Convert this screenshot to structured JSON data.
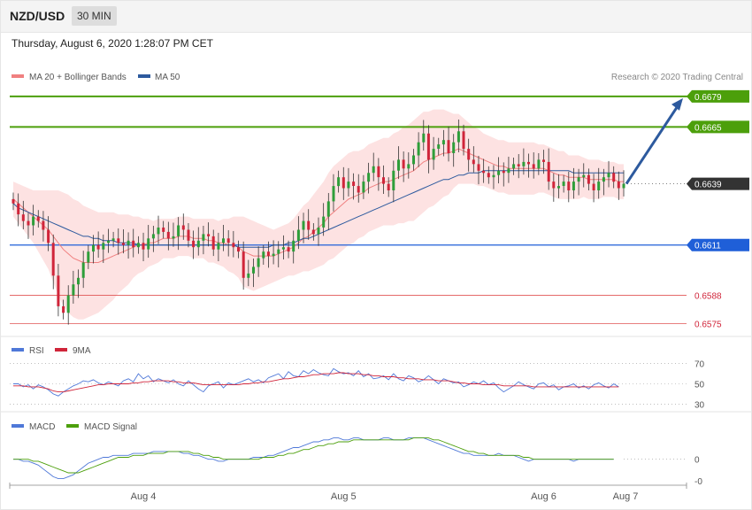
{
  "header": {
    "pair": "NZD/USD",
    "timeframe": "30 MIN"
  },
  "date_text": "Thursday, August 6, 2020 1:28:07 PM CET",
  "legend": {
    "ma20": "MA 20 + Bollinger Bands",
    "ma50": "MA 50",
    "credit": "Research © 2020 Trading Central",
    "rsi": "RSI",
    "rsi_ma": "9MA",
    "macd": "MACD",
    "macd_signal": "MACD Signal"
  },
  "colors": {
    "ma20": "#f08080",
    "ma50": "#2d5a9e",
    "band_fill": "#fde2e2",
    "bull": "#2e9e3a",
    "bear": "#d0253a",
    "resistance": "#4c9f0b",
    "support": "#1f5fd8",
    "target": "#e05555",
    "current": "#333333",
    "arrow": "#2d5a9e",
    "rsi": "#4f78d8",
    "macd": "#4f78d8",
    "signal": "#4c9f0b"
  },
  "chart_data": [
    {
      "type": "candlestick",
      "x_labels": [
        "Aug 4",
        "Aug 5",
        "Aug 6",
        "Aug 7"
      ],
      "ylim": [
        0.657,
        0.6685
      ],
      "levels": [
        {
          "value": 0.6679,
          "label": "0.6679",
          "kind": "resistance"
        },
        {
          "value": 0.6665,
          "label": "0.6665",
          "kind": "resistance"
        },
        {
          "value": 0.6639,
          "label": "0.6639",
          "kind": "current"
        },
        {
          "value": 0.6611,
          "label": "0.6611",
          "kind": "support"
        },
        {
          "value": 0.6588,
          "label": "0.6588",
          "kind": "target"
        },
        {
          "value": 0.6575,
          "label": "0.6575",
          "kind": "target"
        }
      ],
      "close": [
        0.663,
        0.6625,
        0.6622,
        0.662,
        0.6624,
        0.6622,
        0.6618,
        0.6612,
        0.6597,
        0.6583,
        0.658,
        0.6588,
        0.6593,
        0.6596,
        0.6603,
        0.6608,
        0.6611,
        0.6609,
        0.6612,
        0.6613,
        0.6614,
        0.6612,
        0.6611,
        0.6613,
        0.661,
        0.6612,
        0.6609,
        0.6614,
        0.6616,
        0.6619,
        0.6617,
        0.6614,
        0.6615,
        0.662,
        0.6618,
        0.6613,
        0.661,
        0.6613,
        0.6616,
        0.6615,
        0.6609,
        0.6612,
        0.6614,
        0.6612,
        0.661,
        0.6608,
        0.6596,
        0.6598,
        0.6601,
        0.6605,
        0.6608,
        0.6606,
        0.6607,
        0.6609,
        0.661,
        0.6608,
        0.6613,
        0.6618,
        0.6622,
        0.6618,
        0.6616,
        0.6619,
        0.6624,
        0.6631,
        0.6638,
        0.6642,
        0.6637,
        0.664,
        0.6638,
        0.6635,
        0.664,
        0.6644,
        0.6647,
        0.6642,
        0.6639,
        0.6636,
        0.6645,
        0.665,
        0.6646,
        0.6648,
        0.6652,
        0.6658,
        0.6662,
        0.665,
        0.6655,
        0.6657,
        0.6659,
        0.6653,
        0.6658,
        0.6663,
        0.6655,
        0.665,
        0.6648,
        0.6645,
        0.6644,
        0.6642,
        0.6643,
        0.6645,
        0.6644,
        0.6646,
        0.6648,
        0.6647,
        0.6649,
        0.6648,
        0.6646,
        0.665,
        0.6649,
        0.664,
        0.6637,
        0.6638,
        0.664,
        0.6636,
        0.664,
        0.6642,
        0.6643,
        0.6639,
        0.6636,
        0.664,
        0.6642,
        0.6644,
        0.664,
        0.6637,
        0.6639
      ],
      "ma20": [
        0.6632,
        0.663,
        0.6628,
        0.6626,
        0.6624,
        0.6622,
        0.662,
        0.6618,
        0.6615,
        0.6612,
        0.6609,
        0.6607,
        0.6605,
        0.6604,
        0.6603,
        0.6603,
        0.6603,
        0.6603,
        0.6604,
        0.6605,
        0.6606,
        0.6607,
        0.6608,
        0.6609,
        0.661,
        0.6611,
        0.6611,
        0.6612,
        0.6612,
        0.6613,
        0.6614,
        0.6614,
        0.6614,
        0.6615,
        0.6615,
        0.6615,
        0.6614,
        0.6614,
        0.6614,
        0.6613,
        0.6613,
        0.6612,
        0.6612,
        0.6611,
        0.6611,
        0.661,
        0.6608,
        0.6607,
        0.6606,
        0.6606,
        0.6606,
        0.6606,
        0.6606,
        0.6607,
        0.6608,
        0.6609,
        0.661,
        0.6612,
        0.6614,
        0.6615,
        0.6617,
        0.6619,
        0.6621,
        0.6624,
        0.6626,
        0.6628,
        0.663,
        0.6632,
        0.6633,
        0.6634,
        0.6635,
        0.6637,
        0.6638,
        0.6639,
        0.664,
        0.664,
        0.6641,
        0.6642,
        0.6643,
        0.6644,
        0.6645,
        0.6647,
        0.6649,
        0.665,
        0.6651,
        0.6652,
        0.6653,
        0.6653,
        0.6654,
        0.6655,
        0.6654,
        0.6653,
        0.6652,
        0.6651,
        0.665,
        0.6649,
        0.6648,
        0.6647,
        0.6647,
        0.6646,
        0.6646,
        0.6646,
        0.6646,
        0.6646,
        0.6646,
        0.6646,
        0.6646,
        0.6645,
        0.6644,
        0.6643,
        0.6643,
        0.6642,
        0.6642,
        0.6642,
        0.6642,
        0.6641,
        0.6641,
        0.6641,
        0.6641,
        0.6641,
        0.6641,
        0.664,
        0.664
      ],
      "ma50": [
        0.663,
        0.6628,
        0.6627,
        0.6626,
        0.6625,
        0.6624,
        0.6623,
        0.6622,
        0.6621,
        0.662,
        0.6619,
        0.6618,
        0.6617,
        0.6616,
        0.6615,
        0.6615,
        0.6614,
        0.6614,
        0.6613,
        0.6613,
        0.6613,
        0.6612,
        0.6612,
        0.6612,
        0.6612,
        0.6611,
        0.6611,
        0.6611,
        0.6611,
        0.6611,
        0.6611,
        0.6611,
        0.6611,
        0.6611,
        0.6611,
        0.6611,
        0.6611,
        0.6611,
        0.6611,
        0.6611,
        0.6611,
        0.6611,
        0.6611,
        0.6611,
        0.6611,
        0.661,
        0.661,
        0.661,
        0.661,
        0.661,
        0.661,
        0.661,
        0.6611,
        0.6611,
        0.6611,
        0.6612,
        0.6612,
        0.6613,
        0.6614,
        0.6614,
        0.6615,
        0.6616,
        0.6617,
        0.6618,
        0.6619,
        0.662,
        0.6621,
        0.6622,
        0.6623,
        0.6624,
        0.6625,
        0.6626,
        0.6627,
        0.6628,
        0.6629,
        0.663,
        0.6631,
        0.6632,
        0.6633,
        0.6634,
        0.6635,
        0.6636,
        0.6637,
        0.6638,
        0.6639,
        0.664,
        0.6641,
        0.6641,
        0.6642,
        0.6643,
        0.6643,
        0.6644,
        0.6644,
        0.6644,
        0.6645,
        0.6645,
        0.6645,
        0.6645,
        0.6645,
        0.6645,
        0.6645,
        0.6645,
        0.6645,
        0.6645,
        0.6645,
        0.6645,
        0.6645,
        0.6645,
        0.6645,
        0.6645,
        0.6645,
        0.6645,
        0.6644,
        0.6644,
        0.6644,
        0.6644,
        0.6644,
        0.6644,
        0.6644,
        0.6644,
        0.6644,
        0.6644,
        0.6644
      ],
      "bollinger_width": [
        0.0008,
        0.0009,
        0.001,
        0.0011,
        0.0012,
        0.0014,
        0.0016,
        0.0018,
        0.0021,
        0.0024,
        0.0026,
        0.0027,
        0.0027,
        0.0027,
        0.0026,
        0.0025,
        0.0024,
        0.0023,
        0.0022,
        0.0021,
        0.002,
        0.0018,
        0.0017,
        0.0016,
        0.0014,
        0.0013,
        0.0012,
        0.0011,
        0.001,
        0.001,
        0.0009,
        0.0009,
        0.0009,
        0.0009,
        0.0009,
        0.0009,
        0.0009,
        0.0009,
        0.0009,
        0.001,
        0.001,
        0.001,
        0.0011,
        0.0012,
        0.0013,
        0.0014,
        0.0016,
        0.0016,
        0.0016,
        0.0015,
        0.0014,
        0.0013,
        0.0012,
        0.0012,
        0.0012,
        0.0012,
        0.0013,
        0.0014,
        0.0015,
        0.0016,
        0.0017,
        0.0018,
        0.0019,
        0.002,
        0.0021,
        0.0021,
        0.0021,
        0.0021,
        0.0021,
        0.002,
        0.002,
        0.002,
        0.002,
        0.002,
        0.002,
        0.002,
        0.0021,
        0.0021,
        0.0022,
        0.0022,
        0.0023,
        0.0023,
        0.0023,
        0.0022,
        0.0022,
        0.0021,
        0.002,
        0.0019,
        0.0017,
        0.0016,
        0.0015,
        0.0014,
        0.0013,
        0.0013,
        0.0012,
        0.0012,
        0.0012,
        0.0012,
        0.0012,
        0.0012,
        0.0012,
        0.0012,
        0.0012,
        0.0012,
        0.0012,
        0.0011,
        0.0011,
        0.0011,
        0.0011,
        0.0011,
        0.0011,
        0.001,
        0.001,
        0.001,
        0.0009,
        0.0009,
        0.0009,
        0.0009,
        0.0008,
        0.0008,
        0.0008,
        0.0008,
        0.0008
      ],
      "arrow_from": [
        0.6639,
        118
      ],
      "arrow_to": [
        0.6679,
        128
      ]
    },
    {
      "type": "line",
      "name": "RSI",
      "ticks": [
        70,
        50,
        30
      ],
      "ylim": [
        25,
        75
      ],
      "rsi": [
        50,
        50,
        47,
        49,
        45,
        49,
        47,
        44,
        40,
        38,
        42,
        45,
        48,
        50,
        53,
        52,
        54,
        51,
        49,
        52,
        50,
        48,
        53,
        55,
        52,
        60,
        55,
        58,
        52,
        55,
        53,
        51,
        54,
        50,
        48,
        53,
        49,
        45,
        42,
        48,
        50,
        52,
        46,
        51,
        49,
        51,
        53,
        55,
        52,
        54,
        51,
        56,
        58,
        60,
        55,
        62,
        58,
        57,
        63,
        60,
        64,
        61,
        59,
        58,
        65,
        62,
        60,
        61,
        58,
        63,
        57,
        60,
        55,
        56,
        58,
        54,
        60,
        55,
        53,
        58,
        56,
        52,
        54,
        58,
        54,
        50,
        55,
        53,
        51,
        52,
        47,
        49,
        52,
        50,
        53,
        49,
        51,
        46,
        42,
        45,
        48,
        52,
        49,
        47,
        45,
        50,
        51,
        47,
        49,
        44,
        47,
        48,
        50,
        46,
        48,
        45,
        49,
        51,
        48,
        46,
        50,
        47
      ],
      "rsi_ma": [
        48,
        48,
        48,
        47,
        47,
        47,
        46,
        45,
        43,
        42,
        42,
        43,
        44,
        45,
        46,
        47,
        48,
        49,
        49,
        50,
        50,
        50,
        50,
        50,
        51,
        51,
        52,
        52,
        53,
        53,
        53,
        53,
        52,
        52,
        51,
        51,
        51,
        50,
        49,
        49,
        49,
        49,
        49,
        49,
        49,
        49,
        50,
        50,
        51,
        51,
        52,
        52,
        53,
        54,
        55,
        55,
        56,
        57,
        57,
        58,
        59,
        59,
        60,
        60,
        60,
        61,
        61,
        60,
        60,
        60,
        59,
        59,
        58,
        58,
        57,
        57,
        57,
        56,
        56,
        55,
        55,
        55,
        54,
        54,
        54,
        53,
        53,
        53,
        52,
        51,
        51,
        50,
        50,
        50,
        49,
        49,
        49,
        49,
        48,
        48,
        48,
        48,
        48,
        48,
        47,
        47,
        47,
        47,
        47,
        47,
        47,
        47,
        47,
        47,
        47,
        47,
        47,
        47,
        47,
        47,
        47,
        47
      ],
      "series": [
        {
          "name": "RSI"
        },
        {
          "name": "9MA"
        }
      ]
    },
    {
      "type": "line",
      "name": "MACD",
      "ticks": [
        0,
        "-0"
      ],
      "ylim": [
        -0.0012,
        0.0014
      ],
      "macd": [
        0.0,
        0.0,
        -0.0001,
        -0.0001,
        -0.0002,
        -0.0003,
        -0.0005,
        -0.0007,
        -0.0009,
        -0.001,
        -0.001,
        -0.0009,
        -0.0008,
        -0.0006,
        -0.0004,
        -0.0002,
        -0.0001,
        0.0,
        0.0001,
        0.0001,
        0.0002,
        0.0002,
        0.0002,
        0.0002,
        0.0003,
        0.0003,
        0.0003,
        0.0003,
        0.0004,
        0.0004,
        0.0004,
        0.0004,
        0.0004,
        0.0004,
        0.0003,
        0.0003,
        0.0002,
        0.0002,
        0.0001,
        0.0,
        0.0,
        -0.0001,
        -0.0001,
        0.0,
        0.0,
        0.0,
        0.0,
        0.0,
        0.0001,
        0.0001,
        0.0001,
        0.0002,
        0.0002,
        0.0003,
        0.0004,
        0.0005,
        0.0006,
        0.0006,
        0.0007,
        0.0008,
        0.0009,
        0.0009,
        0.001,
        0.001,
        0.0011,
        0.0011,
        0.001,
        0.001,
        0.0011,
        0.0011,
        0.001,
        0.001,
        0.001,
        0.001,
        0.0011,
        0.0011,
        0.001,
        0.001,
        0.001,
        0.0011,
        0.0011,
        0.0011,
        0.0011,
        0.001,
        0.0009,
        0.0008,
        0.0007,
        0.0006,
        0.0005,
        0.0004,
        0.0003,
        0.0003,
        0.0002,
        0.0002,
        0.0002,
        0.0002,
        0.0002,
        0.0003,
        0.0002,
        0.0002,
        0.0002,
        0.0001,
        0.0,
        -0.0001,
        0.0,
        0.0,
        0.0,
        0.0,
        0.0,
        0.0,
        0.0,
        0.0,
        -0.0001,
        0.0,
        0.0,
        0.0,
        0.0,
        0.0,
        0.0,
        0.0,
        0.0
      ],
      "macd_signal": [
        0.0,
        0.0,
        0.0,
        0.0,
        -0.0001,
        -0.0001,
        -0.0002,
        -0.0003,
        -0.0004,
        -0.0005,
        -0.0006,
        -0.0007,
        -0.0007,
        -0.0007,
        -0.0006,
        -0.0005,
        -0.0004,
        -0.0003,
        -0.0002,
        -0.0001,
        0.0,
        0.0001,
        0.0001,
        0.0001,
        0.0002,
        0.0002,
        0.0002,
        0.0003,
        0.0003,
        0.0003,
        0.0003,
        0.0004,
        0.0004,
        0.0004,
        0.0004,
        0.0004,
        0.0003,
        0.0003,
        0.0002,
        0.0002,
        0.0001,
        0.0001,
        0.0,
        0.0,
        0.0,
        0.0,
        0.0,
        0.0,
        0.0,
        0.0,
        0.0001,
        0.0001,
        0.0001,
        0.0002,
        0.0002,
        0.0003,
        0.0003,
        0.0004,
        0.0005,
        0.0005,
        0.0006,
        0.0007,
        0.0007,
        0.0008,
        0.0008,
        0.0009,
        0.0009,
        0.0009,
        0.001,
        0.001,
        0.001,
        0.001,
        0.001,
        0.001,
        0.001,
        0.001,
        0.001,
        0.001,
        0.001,
        0.001,
        0.0011,
        0.0011,
        0.0011,
        0.0011,
        0.001,
        0.001,
        0.0009,
        0.0008,
        0.0007,
        0.0006,
        0.0005,
        0.0004,
        0.0004,
        0.0003,
        0.0003,
        0.0002,
        0.0002,
        0.0002,
        0.0002,
        0.0002,
        0.0002,
        0.0002,
        0.0001,
        0.0001,
        0.0,
        0.0,
        0.0,
        0.0,
        0.0,
        0.0,
        0.0,
        0.0,
        0.0,
        0.0,
        0.0,
        0.0,
        0.0,
        0.0,
        0.0,
        0.0,
        0.0
      ],
      "series": [
        {
          "name": "MACD"
        },
        {
          "name": "MACD Signal"
        }
      ]
    }
  ]
}
